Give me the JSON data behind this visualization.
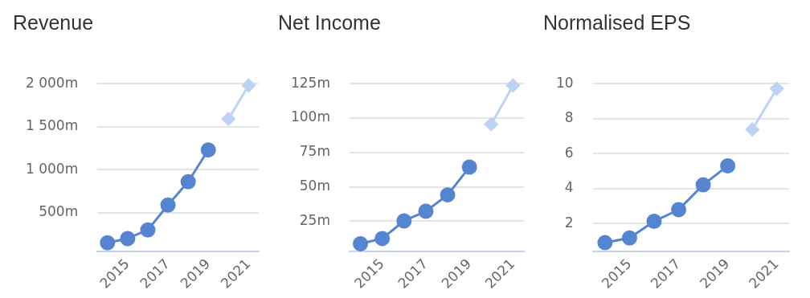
{
  "chart_data": [
    {
      "type": "line",
      "title": "Revenue",
      "categories": [
        null,
        "2015",
        null,
        "2017",
        null,
        "2019",
        null,
        "2021"
      ],
      "grid": "y",
      "legend": false,
      "ylim": [
        50,
        2000
      ],
      "yticks": [
        {
          "value": 500,
          "label": "500m"
        },
        {
          "value": 1000,
          "label": "1 000m"
        },
        {
          "value": 1500,
          "label": "1 500m"
        },
        {
          "value": 2000,
          "label": "2 000m"
        }
      ],
      "series": [
        {
          "color": "#5585d0",
          "marker": "circle",
          "values": [
            150,
            200,
            300,
            590,
            860,
            1230,
            null,
            null
          ]
        },
        {
          "color": "#bdd3f5",
          "marker": "diamond",
          "values": [
            null,
            null,
            null,
            null,
            null,
            null,
            1590,
            1980
          ]
        }
      ]
    },
    {
      "type": "line",
      "title": "Net Income",
      "categories": [
        null,
        "2015",
        null,
        "2017",
        null,
        "2019",
        null,
        "2021"
      ],
      "grid": "y",
      "legend": false,
      "ylim": [
        3,
        125
      ],
      "yticks": [
        {
          "value": 25,
          "label": "25m"
        },
        {
          "value": 50,
          "label": "50m"
        },
        {
          "value": 75,
          "label": "75m"
        },
        {
          "value": 100,
          "label": "100m"
        },
        {
          "value": 125,
          "label": "125m"
        }
      ],
      "series": [
        {
          "color": "#5585d0",
          "marker": "circle",
          "values": [
            8.5,
            12.4,
            25.2,
            32.2,
            44.1,
            64.3,
            null,
            null
          ]
        },
        {
          "color": "#bdd3f5",
          "marker": "diamond",
          "values": [
            null,
            null,
            null,
            null,
            null,
            null,
            95.5,
            123.7
          ]
        }
      ]
    },
    {
      "type": "line",
      "title": "Normalised EPS",
      "categories": [
        null,
        "2015",
        null,
        "2017",
        null,
        "2019",
        null,
        "2021"
      ],
      "grid": "y",
      "legend": false,
      "ylim": [
        0.4,
        10
      ],
      "yticks": [
        2,
        4,
        6,
        8,
        10
      ],
      "series": [
        {
          "color": "#5585d0",
          "marker": "circle",
          "values": [
            0.9,
            1.17,
            2.12,
            2.79,
            4.21,
            5.3,
            null,
            null
          ]
        },
        {
          "color": "#bdd3f5",
          "marker": "diamond",
          "values": [
            null,
            null,
            null,
            null,
            null,
            null,
            7.38,
            9.72
          ]
        }
      ]
    }
  ]
}
